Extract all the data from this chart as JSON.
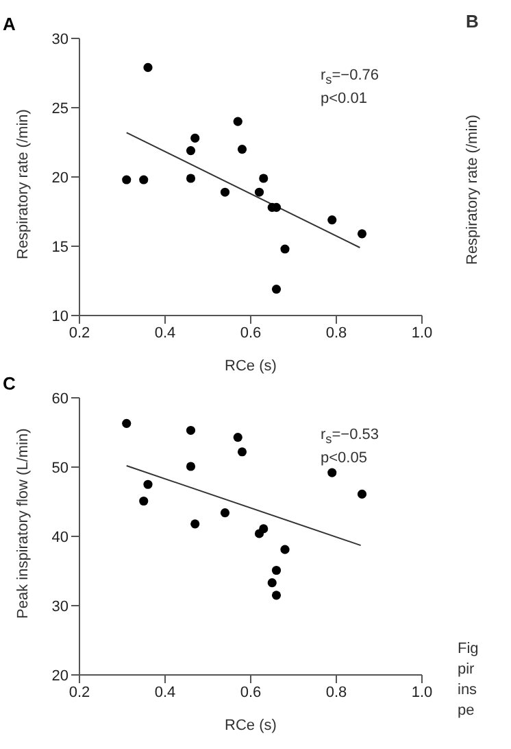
{
  "chart_data": [
    {
      "type": "scatter",
      "title": "A",
      "xlabel": "RCe (s)",
      "ylabel": "Respiratory rate (/min)",
      "xlim": [
        0.2,
        1.0
      ],
      "xticks": [
        0.2,
        0.4,
        0.6,
        0.8,
        {
          "value": 1,
          "label": "1.0"
        }
      ],
      "ylim": [
        10,
        30
      ],
      "yticks": [
        10,
        15,
        20,
        25,
        30
      ],
      "annotations": [
        "r$_{s}$=−0.76",
        "p<0.01"
      ],
      "series": [
        {
          "color": "#000000",
          "marker": "circle",
          "x": [
            0.31,
            0.35,
            0.36,
            0.46,
            0.46,
            0.47,
            0.54,
            0.57,
            0.58,
            0.62,
            0.63,
            0.65,
            0.66,
            0.68,
            0.66,
            0.79,
            0.86
          ],
          "values": [
            19.8,
            19.8,
            27.9,
            21.9,
            19.9,
            22.8,
            18.9,
            24.0,
            22.0,
            18.9,
            19.9,
            17.8,
            17.8,
            14.8,
            11.9,
            16.9,
            15.9
          ]
        },
        {
          "type": "line",
          "color": "#333333",
          "x": [
            0.31,
            0.855
          ],
          "values": [
            23.2,
            14.9
          ]
        }
      ]
    },
    {
      "type": "scatter",
      "title": "C",
      "xlabel": "RCe (s)",
      "ylabel": "Peak inspiratory flow (L/min)",
      "xlim": [
        0.2,
        1.0
      ],
      "xticks": [
        0.2,
        0.4,
        0.6,
        0.8,
        {
          "value": 1,
          "label": "1.0"
        }
      ],
      "ylim": [
        20,
        60
      ],
      "yticks": [
        20,
        30,
        40,
        50,
        60
      ],
      "annotations": [
        "r$_{s}$=−0.53",
        "p<0.05"
      ],
      "series": [
        {
          "color": "#000000",
          "marker": "circle",
          "x": [
            0.31,
            0.35,
            0.36,
            0.46,
            0.46,
            0.47,
            0.54,
            0.57,
            0.58,
            0.62,
            0.63,
            0.68,
            0.66,
            0.65,
            0.66,
            0.79,
            0.86
          ],
          "values": [
            56.3,
            45.1,
            47.5,
            55.3,
            50.1,
            41.8,
            43.4,
            54.3,
            52.2,
            40.4,
            41.1,
            38.1,
            35.1,
            33.3,
            31.5,
            49.2,
            46.1
          ]
        },
        {
          "type": "line",
          "color": "#333333",
          "x": [
            0.31,
            0.857
          ],
          "values": [
            50.2,
            38.7
          ]
        }
      ]
    },
    {
      "type": "other",
      "title": "B",
      "ylabel": "Respiratory rate (/min)",
      "annotations": [
        "Fig",
        "pir",
        "ins",
        "pe"
      ]
    }
  ]
}
